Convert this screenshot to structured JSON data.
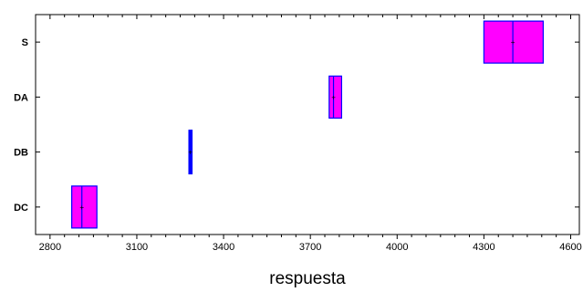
{
  "chart_data": {
    "type": "box",
    "title": "",
    "xlabel": "respuesta",
    "ylabel": "",
    "xlim": [
      2750,
      4630
    ],
    "xticks": [
      2800,
      3100,
      3400,
      3700,
      4000,
      4300,
      4600
    ],
    "categories": [
      "S",
      "DA",
      "DB",
      "DC"
    ],
    "boxes": [
      {
        "category": "S",
        "q1": 4300,
        "median": 4400,
        "q3": 4505,
        "mean": 4400
      },
      {
        "category": "DA",
        "q1": 3765,
        "median": 3780,
        "q3": 3808,
        "mean": 3780
      },
      {
        "category": "DB",
        "q1": 3283,
        "median": 3285,
        "q3": 3288,
        "mean": 3285
      },
      {
        "category": "DC",
        "q1": 2875,
        "median": 2910,
        "q3": 2962,
        "mean": 2910
      }
    ],
    "grid": false,
    "colors": {
      "box_fill": "#ff00ff",
      "box_stroke": "#0000ff",
      "median_line": "#0000ff",
      "mean_marker": "#ff0000",
      "frame": "#000000"
    }
  }
}
